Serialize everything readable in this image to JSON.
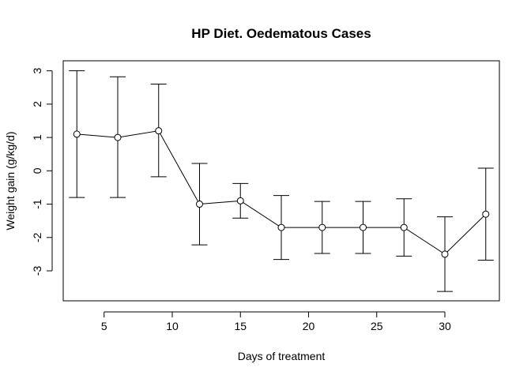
{
  "chart_data": {
    "type": "line",
    "title": "HP Diet. Oedematous Cases",
    "xlabel": "Days of treatment",
    "ylabel": "Weight gain (g/kg/d)",
    "xlim": [
      2.0,
      34.0
    ],
    "ylim": [
      -3.9,
      3.3
    ],
    "xticks": [
      5,
      10,
      15,
      20,
      25,
      30
    ],
    "yticks": [
      -3,
      -2,
      -1,
      0,
      1,
      2,
      3
    ],
    "grid": false,
    "x": [
      3,
      6,
      9,
      12,
      15,
      18,
      21,
      24,
      27,
      30,
      33
    ],
    "y": [
      1.1,
      1.0,
      1.2,
      -1.0,
      -0.9,
      -1.7,
      -1.7,
      -1.7,
      -1.7,
      -2.5,
      -1.3
    ],
    "err_low": [
      -0.8,
      -0.8,
      -0.18,
      -2.22,
      -1.42,
      -2.66,
      -2.48,
      -2.48,
      -2.56,
      -3.62,
      -2.68
    ],
    "err_high": [
      3.0,
      2.82,
      2.6,
      0.22,
      -0.38,
      -0.74,
      -0.92,
      -0.92,
      -0.84,
      -1.38,
      0.08
    ]
  }
}
